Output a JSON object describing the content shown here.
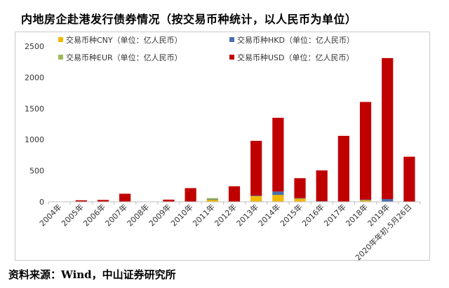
{
  "title": "内地房企赴港发行债券情况（按交易币种统计，以人民币为单位）",
  "source": "资料来源：Wind，中山证券研究所",
  "chart_data": {
    "type": "bar",
    "stacked": true,
    "categories": [
      "2004年",
      "2005年",
      "2006年",
      "2007年",
      "2008年",
      "2009年",
      "2010年",
      "2011年",
      "2012年",
      "2013年",
      "2014年",
      "2015年",
      "2016年",
      "2017年",
      "2018年",
      "2019年",
      "2020年年初-5月26日"
    ],
    "series": [
      {
        "name": "交易币种CNY（单位：亿人民币）",
        "color": "#f2b800",
        "values": [
          0,
          0,
          0,
          0,
          0,
          0,
          0,
          35,
          0,
          95,
          110,
          55,
          5,
          0,
          25,
          5,
          0
        ]
      },
      {
        "name": "交易币种HKD（单位：亿人民币）",
        "color": "#4a6fa8",
        "values": [
          0,
          0,
          0,
          0,
          0,
          0,
          0,
          5,
          0,
          5,
          55,
          5,
          5,
          5,
          10,
          40,
          5
        ]
      },
      {
        "name": "交易币种EUR（单位：亿人民币）",
        "color": "#9bbb59",
        "values": [
          0,
          0,
          0,
          0,
          0,
          0,
          0,
          20,
          0,
          0,
          0,
          0,
          0,
          0,
          0,
          0,
          0
        ]
      },
      {
        "name": "交易币种USD（单位：亿人民币）",
        "color": "#c00000",
        "values": [
          5,
          25,
          30,
          130,
          0,
          35,
          220,
          0,
          250,
          880,
          1185,
          320,
          495,
          1055,
          1570,
          2265,
          720
        ]
      }
    ],
    "ylim": [
      0,
      2500
    ],
    "yticks": [
      0,
      500,
      1000,
      1500,
      2000,
      2500
    ],
    "grid": false,
    "legend": "top"
  }
}
